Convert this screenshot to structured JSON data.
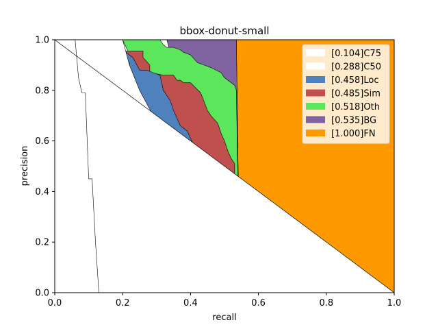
{
  "chart_data": {
    "type": "area",
    "title": "bbox-donut-small",
    "xlabel": "recall",
    "ylabel": "precision",
    "xlim": [
      0,
      1
    ],
    "ylim": [
      0,
      1
    ],
    "xticks": [
      "0.0",
      "0.2",
      "0.4",
      "0.6",
      "0.8",
      "1.0"
    ],
    "yticks": [
      "0.0",
      "0.2",
      "0.4",
      "0.6",
      "0.8",
      "1.0"
    ],
    "grid": false,
    "legend_position": "top-right",
    "series": [
      {
        "name": "[0.104]C75",
        "color": "#ffffff",
        "points": [
          [
            0.0,
            1.0
          ],
          [
            0.06,
            1.0
          ],
          [
            0.07,
            0.85
          ],
          [
            0.08,
            0.79
          ],
          [
            0.09,
            0.79
          ],
          [
            0.1,
            0.45
          ],
          [
            0.11,
            0.45
          ],
          [
            0.12,
            0.2
          ],
          [
            0.13,
            0.0
          ],
          [
            1.0,
            0.0
          ]
        ]
      },
      {
        "name": "[0.288]C50",
        "color": "#ffffff",
        "points": [
          [
            0.0,
            1.0
          ],
          [
            0.13,
            1.0
          ],
          [
            0.14,
            1.0
          ],
          [
            0.2,
            1.0
          ],
          [
            0.22,
            0.9
          ],
          [
            0.25,
            0.8
          ],
          [
            0.27,
            0.75
          ],
          [
            0.29,
            0.7
          ],
          [
            0.31,
            0.65
          ],
          [
            0.33,
            0.55
          ],
          [
            0.345,
            0.45
          ],
          [
            0.355,
            0.3
          ],
          [
            0.36,
            0.0
          ],
          [
            1.0,
            0.0
          ]
        ]
      },
      {
        "name": "[0.458]Loc",
        "color": "#4f81bd",
        "points": [
          [
            0.0,
            1.0
          ],
          [
            0.13,
            1.0
          ],
          [
            0.14,
            1.0
          ],
          [
            0.14,
            0.935
          ],
          [
            0.17,
            0.935
          ],
          [
            0.17,
            0.92
          ],
          [
            0.2,
            0.92
          ],
          [
            0.2,
            0.91
          ],
          [
            0.22,
            0.91
          ],
          [
            0.22,
            0.77
          ],
          [
            0.23,
            0.77
          ],
          [
            0.23,
            0.665
          ],
          [
            0.3,
            0.665
          ],
          [
            0.3,
            0.59
          ],
          [
            0.31,
            0.5
          ],
          [
            0.32,
            0.49
          ],
          [
            0.33,
            0.43
          ],
          [
            0.34,
            0.41
          ],
          [
            0.35,
            0.36
          ],
          [
            0.36,
            0.31
          ],
          [
            0.36,
            0.0
          ],
          [
            0.545,
            0.0
          ],
          [
            0.54,
            0.1
          ],
          [
            0.53,
            0.38
          ],
          [
            0.51,
            0.43
          ],
          [
            0.49,
            0.48
          ],
          [
            0.46,
            0.52
          ],
          [
            0.43,
            0.56
          ],
          [
            0.41,
            0.58
          ],
          [
            0.39,
            0.64
          ],
          [
            0.37,
            0.66
          ],
          [
            0.35,
            0.72
          ],
          [
            0.34,
            0.76
          ],
          [
            0.32,
            0.8
          ],
          [
            0.31,
            0.86
          ],
          [
            0.29,
            0.87
          ],
          [
            0.27,
            0.88
          ],
          [
            0.25,
            0.88
          ],
          [
            0.23,
            0.93
          ],
          [
            0.21,
            0.95
          ],
          [
            0.2,
            0.96
          ],
          [
            0.18,
            0.98
          ],
          [
            0.17,
            1.0
          ],
          [
            1.0,
            1.0
          ]
        ]
      },
      {
        "name": "[0.485]Sim",
        "color": "#c0504d",
        "points": [
          [
            0.21,
            0.95
          ],
          [
            0.2,
            0.96
          ],
          [
            0.2,
            0.955
          ],
          [
            0.22,
            0.955
          ],
          [
            0.25,
            0.955
          ],
          [
            0.26,
            0.955
          ],
          [
            0.26,
            0.93
          ],
          [
            0.28,
            0.9
          ],
          [
            0.28,
            0.87
          ],
          [
            0.32,
            0.86
          ],
          [
            0.35,
            0.86
          ],
          [
            0.36,
            0.84
          ],
          [
            0.37,
            0.84
          ],
          [
            0.38,
            0.83
          ],
          [
            0.4,
            0.83
          ],
          [
            0.43,
            0.79
          ],
          [
            0.45,
            0.72
          ],
          [
            0.46,
            0.7
          ],
          [
            0.48,
            0.67
          ],
          [
            0.49,
            0.63
          ],
          [
            0.5,
            0.6
          ],
          [
            0.51,
            0.56
          ],
          [
            0.52,
            0.53
          ],
          [
            0.53,
            0.51
          ],
          [
            0.53,
            0.44
          ],
          [
            0.54,
            0.44
          ],
          [
            0.545,
            0.0
          ]
        ]
      },
      {
        "name": "[0.518]Oth",
        "color": "#5ce65c",
        "points": [
          [
            0.2,
            1.0
          ],
          [
            0.31,
            1.0
          ],
          [
            0.32,
            0.98
          ],
          [
            0.33,
            0.97
          ],
          [
            0.35,
            0.97
          ],
          [
            0.37,
            0.96
          ],
          [
            0.38,
            0.95
          ],
          [
            0.4,
            0.94
          ],
          [
            0.42,
            0.91
          ],
          [
            0.44,
            0.9
          ],
          [
            0.46,
            0.89
          ],
          [
            0.49,
            0.87
          ],
          [
            0.5,
            0.85
          ],
          [
            0.52,
            0.83
          ],
          [
            0.53,
            0.82
          ],
          [
            0.535,
            0.8
          ],
          [
            0.545,
            0.0
          ]
        ]
      },
      {
        "name": "[0.535]BG",
        "color": "#8064a2",
        "points": [
          [
            0.33,
            1.0
          ],
          [
            0.535,
            1.0
          ],
          [
            0.545,
            0.0
          ]
        ]
      },
      {
        "name": "[1.000]FN",
        "color": "#ff9900",
        "points": [
          [
            0.535,
            1.0
          ],
          [
            1.0,
            1.0
          ],
          [
            1.0,
            0.0
          ],
          [
            0.545,
            0.0
          ]
        ]
      }
    ]
  }
}
